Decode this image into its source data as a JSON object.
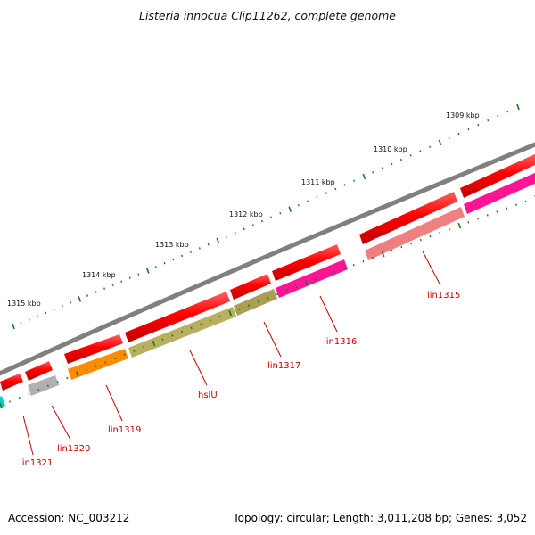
{
  "title": "Listeria innocua Clip11262, complete genome",
  "footer": {
    "accession": "Accession: NC_003212",
    "summary": "Topology: circular; Length: 3,011,208 bp; Genes: 3,052"
  },
  "kbp_labels": [
    "1309 kbp",
    "1310 kbp",
    "1311 kbp",
    "1312 kbp",
    "1313 kbp",
    "1314 kbp",
    "1315 kbp"
  ],
  "genes": [
    {
      "name": "lin1315",
      "color": "#f08080"
    },
    {
      "name": "lin1316",
      "color": "#ff1493"
    },
    {
      "name": "lin1317",
      "color": "#a8a050"
    },
    {
      "name": "hslU",
      "color": "#b8b060"
    },
    {
      "name": "lin1319",
      "color": "#ff8c00"
    },
    {
      "name": "lin1320",
      "color": "#b0b0b0"
    },
    {
      "name": "lin1321",
      "color": "#00ced1"
    }
  ],
  "colors": {
    "backbone": "#808080",
    "cds_forward": "#ff0000",
    "tick": "#1a7a1a",
    "label": "#cc0000"
  }
}
